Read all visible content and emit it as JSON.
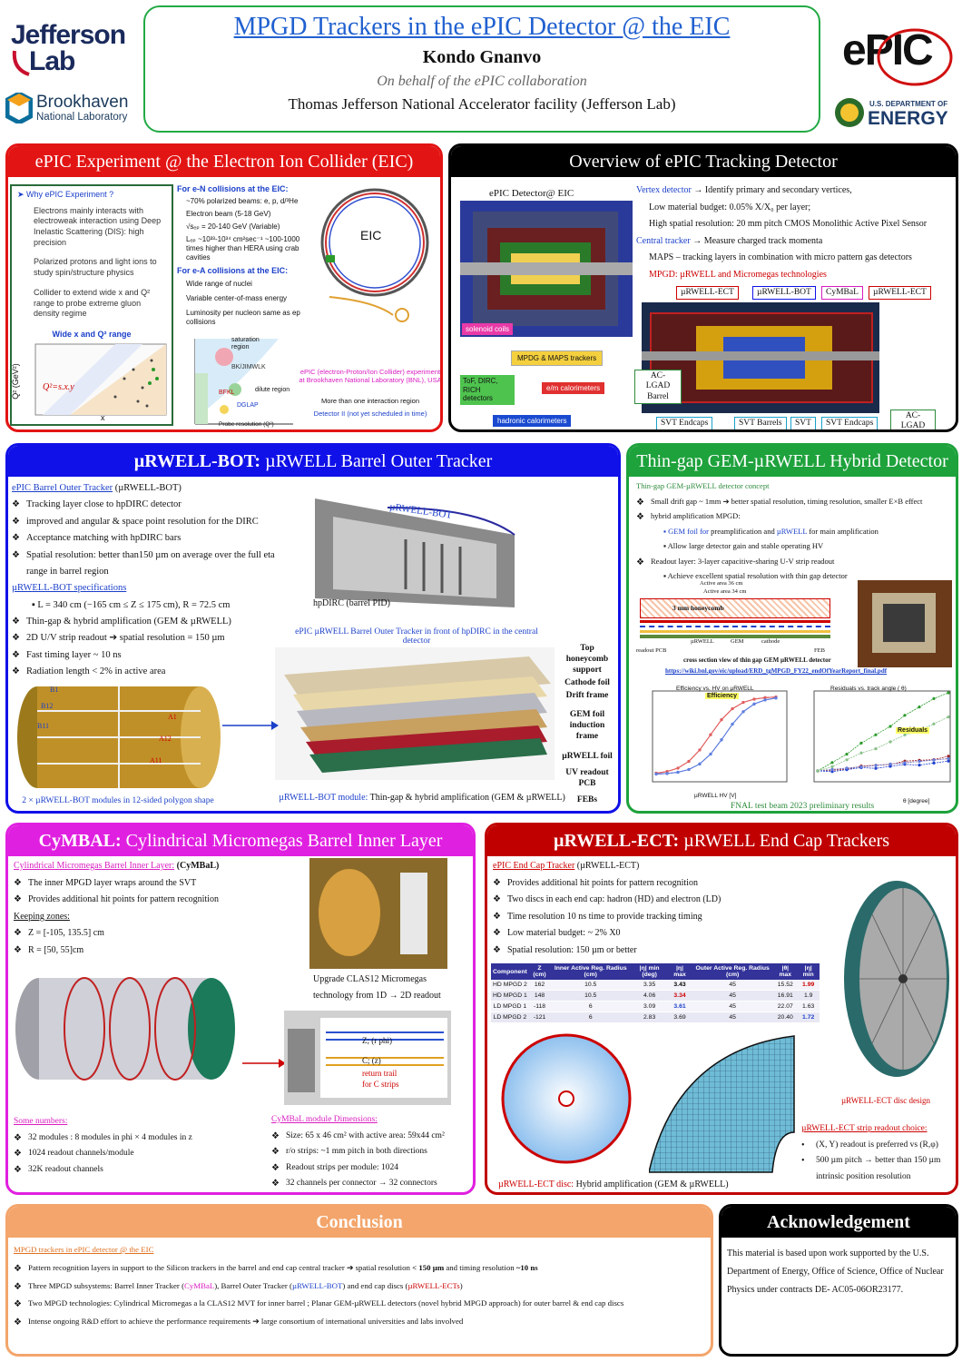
{
  "header": {
    "title": "MPGD Trackers in the ePIC Detector @ the EIC",
    "author": "Kondo Gnanvo",
    "collab": "On behalf of the ePIC collaboration",
    "institution": "Thomas Jefferson National Accelerator facility (Jefferson Lab)",
    "logos": {
      "jlab1": "Jefferson",
      "jlab2": "Lab",
      "bnl1": "Brookhaven",
      "bnl2": "National Laboratory",
      "epic": "ePIC",
      "doe1": "U.S. DEPARTMENT OF",
      "doe2": "ENERGY"
    }
  },
  "eic": {
    "title": "ePIC Experiment @ the Electron Ion Collider (EIC)",
    "why": "Why ePIC Experiment ?",
    "why_items": [
      "Electrons mainly interacts with electroweak interaction using Deep Inelastic Scattering (DIS): high precision",
      "Polarized protons and light ions  to study spin/structure physics",
      "Collider to extend wide x and Q² range to probe extreme gluon density regime"
    ],
    "plot_title": "Wide x and Q² range",
    "plot_ylabel": "Q² (GeV²)",
    "plot_xlabel": "x",
    "plot_formula": "Q²=s.x.y",
    "ep_title": "For e-N collisions at the EIC:",
    "ep_items": [
      "~70% polarized beams: e, p, d/³He",
      "Electron beam (5-18 GeV)",
      "√sₑₚ = 20-140 GeV (Variable)",
      "Lₑₚ ~10³³-10³⁴ cm²sec⁻¹ ~100-1000 times higher than HERA using crab cavities"
    ],
    "ea_title": "For e-A collisions at the EIC:",
    "ea_items": [
      "Wide range of nuclei",
      "Variable center-of-mass energy",
      "Luminosity per nucleon same as ep collisions"
    ],
    "ring_label": "EIC",
    "bnl_caption": "ePIC (electron-Proton/Ion Collider) experiment at Brookhaven National Laboratory (BNL), USA",
    "more1": "More than one interaction region",
    "more2": "Detector II (not yet scheduled in time)",
    "phase": {
      "y": "Energy (ln 1/x)",
      "x": "Probe resolution (Q²)",
      "sat": "saturation region",
      "trans": "transition region",
      "bk": "BK/JIMWLK",
      "dglap": "DGLAP",
      "bfkl": "BFKL",
      "dilute": "dilute region",
      "np": "non-perturbative region"
    }
  },
  "overview": {
    "title": "Overview of ePIC Tracking Detector",
    "detector_label": "ePIC Detector@ EIC",
    "lines": [
      {
        "pre": "Vertex detector",
        "post": " → Identify primary and secondary vertices,"
      },
      {
        "pre": "",
        "post": "Low material budget: 0.05% X/X₀ per layer;"
      },
      {
        "pre": "",
        "post": "High spatial resolution: 20 mm pitch CMOS Monolithic Active Pixel Sensor"
      },
      {
        "pre": "Central tracker",
        "post": " → Measure charged track momenta"
      },
      {
        "pre": "",
        "post": "MAPS – tracking layers in combination with micro pattern gas detectors"
      }
    ],
    "mpgd_line": "MPGD: µRWELL and Micromegas technologies",
    "tags": {
      "solenoid": "solenoid coils",
      "mpdg": "MPDG & MAPS trackers",
      "tof": "ToF, DIRC, RICH detectors",
      "em": "e/m calorimeters",
      "had": "hadronic calorimeters"
    },
    "labels": {
      "ect1": "µRWELL-ECT",
      "bot": "µRWELL-BOT",
      "cymbal": "CyMBaL",
      "ect2": "µRWELL-ECT",
      "lgad": "AC-LGAD Barrel",
      "svtend1": "SVT Endcaps",
      "svtbar": "SVT Barrels",
      "svt": "SVT",
      "svtend2": "SVT Endcaps",
      "lgadend": "AC-LGAD Endcap"
    }
  },
  "bot": {
    "title_b": "µRWELL-BOT:",
    "title_r": " µRWELL Barrel Outer Tracker",
    "h1": "ePIC Barrel Outer Tracker",
    "h1b": " (µRWELL-BOT)",
    "items1": [
      "Tracking layer close to hpDIRC detector",
      "improved and angular & space point resolution for the DIRC",
      "Acceptance matching with hpDIRC bars",
      "Spatial resolution: better than150 µm on average over the full eta range in barrel region"
    ],
    "h2": "µRWELL-BOT specifications",
    "spec": "L = 340 cm (−165 cm ≤ Z  ≤ 175 cm), R = 72.5 cm",
    "items2": [
      "Thin-gap & hybrid amplification (GEM & µRWELL)",
      "2D U/V strip  readout ➔ spatial resolution = 150 µm",
      "Fast timing layer ~ 10 ns",
      "Radiation length < 2% in active area"
    ],
    "img_label": "µRWELL-BOT",
    "hpdirc": "hpDIRC (barrel PID)",
    "img_cap": "ePIC µRWELL Barrel Outer Tracker in front of hpDIRC in the central detector",
    "layers": [
      "Top honeycomb support",
      "Cathode foil",
      "Drift frame",
      "GEM foil induction frame",
      "µRWELL foil",
      "UV readout PCB",
      "FEBs"
    ],
    "mods": [
      "B1",
      "B12",
      "B11",
      "A1",
      "A12",
      "A11"
    ],
    "cap_left": "2 × µRWELL-BOT modules in 12-sided polygon shape",
    "cap_right_b": "µRWELL-BOT module:",
    "cap_right": " Thin-gap & hybrid amplification (GEM & µRWELL)"
  },
  "gem": {
    "title": "Thin-gap GEM-µRWELL Hybrid Detector",
    "h1": "Thin-gap GEM-µRWELL detector concept",
    "i1": "Small drift gap ~ 1mm ➔ better spatial resolution, timing resolution, smaller E×B effect",
    "i2": "hybrid amplification MPGD:",
    "s1a": "GEM foil for",
    "s1b": " preamplification and ",
    "s1c": "µRWELL",
    "s1d": " for main amplification",
    "s2": "Allow large detector gain and stable operating HV",
    "i3": "Readout layer: 3-layer capacitive-sharing U-V strip readout",
    "s3": "Achieve excellent spatial resolution with thin gap detector",
    "xs": {
      "a36": "Active area 36 cm",
      "a34": "Active area 34 cm",
      "hc": "3 mm honeycomb",
      "frame": "frame",
      "mu": "µRWELL",
      "gem": "GEM",
      "cath": "cathode",
      "pcb": "readout PCB",
      "feb": "FEB"
    },
    "xs_cap": "cross section view of  thin gap GEM µRWELL detector",
    "url": "https://wiki.bnl.gov/eic/upload/ERD_tgMPGD_FY22_endOfYearReport_final.pdf",
    "fnal": "FNAL test beam 2023 preliminary results",
    "eff_title": "Efficiency vs. HV on µRWELL",
    "eff_tag": "Efficiency",
    "eff_x": "µRWELL HV [V]",
    "eff_y": "Efficiency",
    "res_title": "Residuals vs. track angle ( θ)",
    "res_tag": "Residuals",
    "res_x": "θ [degree]",
    "res_y": "Residuals [µm]",
    "eff_legend": [
      "y-plane (1-mm hybrid)",
      "x-plane (1-mm hybrid)",
      "y-plane (0.5-mm hybrid)",
      "x-plane (0.5-mm hybrid)"
    ],
    "res_legend": [
      "x-plane (1-mm hybrid)",
      "y-plane (1-mm hybrid)",
      "x-plane (0.5-mm hybrid)",
      "y-plane (0.5-mm hybrid)",
      "x-plane (3-mm µRWELL)",
      "y-plane (3-mm µRWELL)"
    ]
  },
  "cymbal": {
    "title_b": "CyMBAL:",
    "title_r": " Cylindrical Micromegas Barrel Inner Layer",
    "h1": "Cylindrical Micromegas Barrel Inner Layer:",
    "h1b": " (CyMBaL)",
    "items1": [
      "The inner MPGD layer wraps around the SVT",
      "Provides additional hit points for pattern recognition"
    ],
    "kz": "Keeping zones:",
    "items2": [
      "Z = [-105, 135.5] cm",
      "R = [50, 55]cm"
    ],
    "upgrade1": "Upgrade CLAS12 Micromegas",
    "upgrade2": "technology from 1D → 2D  readout",
    "zlbl": "Z; (r phi)",
    "clbl": "C; (z)",
    "ret1": "return trail",
    "ret2": "for C strips",
    "sn": "Some numbers:",
    "items3": [
      "32 modules : 8 modules in phi × 4 modules in z",
      "1024 readout channels/module",
      "32K readout channels"
    ],
    "dim": "CyMBaL module Dimensions:",
    "items4": [
      "Size: 65 x 46 cm² with active area: 59x44 cm²",
      "r/o strips: ~1 mm pitch in both directions",
      "Readout strips per module: 1024",
      "32 channels per connector → 32 connectors"
    ]
  },
  "ect": {
    "title_b": "µRWELL-ECT:",
    "title_r": " µRWELL End Cap Trackers",
    "h1": "ePIC End Cap Tracker",
    "h1b": " (µRWELL-ECT)",
    "items": [
      "Provides additional hit points for pattern recognition",
      "Two discs in each end cap: hadron (HD) and electron (LD)",
      "Time resolution 10 ns time to provide tracking timing",
      "Low material budget:  ~ 2% X0",
      "Spatial resolution: 150 µm or better"
    ],
    "table_head": [
      "Component",
      "Z (cm)",
      "Inner Active Reg. Radius (cm)",
      "|η| min (deg)",
      "|η| max",
      "Outer Active Reg. Radius (cm)",
      "|θ| max",
      "|η| min"
    ],
    "table_rows": [
      [
        "HD MPGD 2",
        "162",
        "10.5",
        "3.35",
        "3.43",
        "45",
        "15.52",
        "1.99"
      ],
      [
        "HD MPGD 1",
        "148",
        "10.5",
        "4.06",
        "3.34",
        "45",
        "16.91",
        "1.9"
      ],
      [
        "LD MPGD 1",
        "-118",
        "6",
        "3.09",
        "3.61",
        "45",
        "22.07",
        "1.63"
      ],
      [
        "LD MPGD 2",
        "-121",
        "6",
        "2.83",
        "3.69",
        "45",
        "20.40",
        "1.72"
      ]
    ],
    "disc_cap": "µRWELL-ECT disc design",
    "disc2_cap_a": "µRWELL-ECT disc:",
    "disc2_cap_b": " Hybrid amplification (GEM & µRWELL)",
    "choice": "µRWELL-ECT strip readout choice:",
    "choice_items": [
      "(X, Y) readout is preferred vs (R,φ)",
      "500 µm pitch → better than 150 µm intrinsic position resolution"
    ]
  },
  "conclusion": {
    "title": "Conclusion",
    "h1": "MPGD trackers  in ePIC detector @ the EIC",
    "l1a": "Pattern recognition layers in support to the Silicon trackers in the barrel and end cap central tracker ➔ spatial resolution ",
    "l1b": "< 150 µm",
    "l1c": " and timing resolution ",
    "l1d": "~10 ns",
    "l2a": "Three MPGD subsystems: Barrel Inner Tracker (",
    "l2b": "CyMBaL",
    "l2c": "), Barrel Outer Tracker (",
    "l2d": "µRWELL-BOT",
    "l2e": ") and end cap discs (",
    "l2f": "µRWELL-ECTs",
    "l2g": ")",
    "l3": "Two MPGD technologies: Cylindrical Micromegas a la CLAS12 MVT for inner barrel ; Planar GEM-µRWELL detectors (novel hybrid MPGD approach) for outer barrel & end cap discs",
    "l4": "Intense ongoing R&D effort to achieve the performance requirements ➔ large consortium of international universities and labs involved"
  },
  "ack": {
    "title": "Acknowledgement",
    "text": "This material is based upon work supported by the U.S. Department of Energy, Office of Science, Office of Nuclear Physics under contracts DE- AC05-06OR23177."
  },
  "colors": {
    "eic": "#e31414",
    "black": "#000000",
    "bot": "#1010e8",
    "gem": "#1ea23c",
    "cymbal": "#e020e0",
    "ect": "#c00000",
    "concl": "#f3a56b"
  }
}
